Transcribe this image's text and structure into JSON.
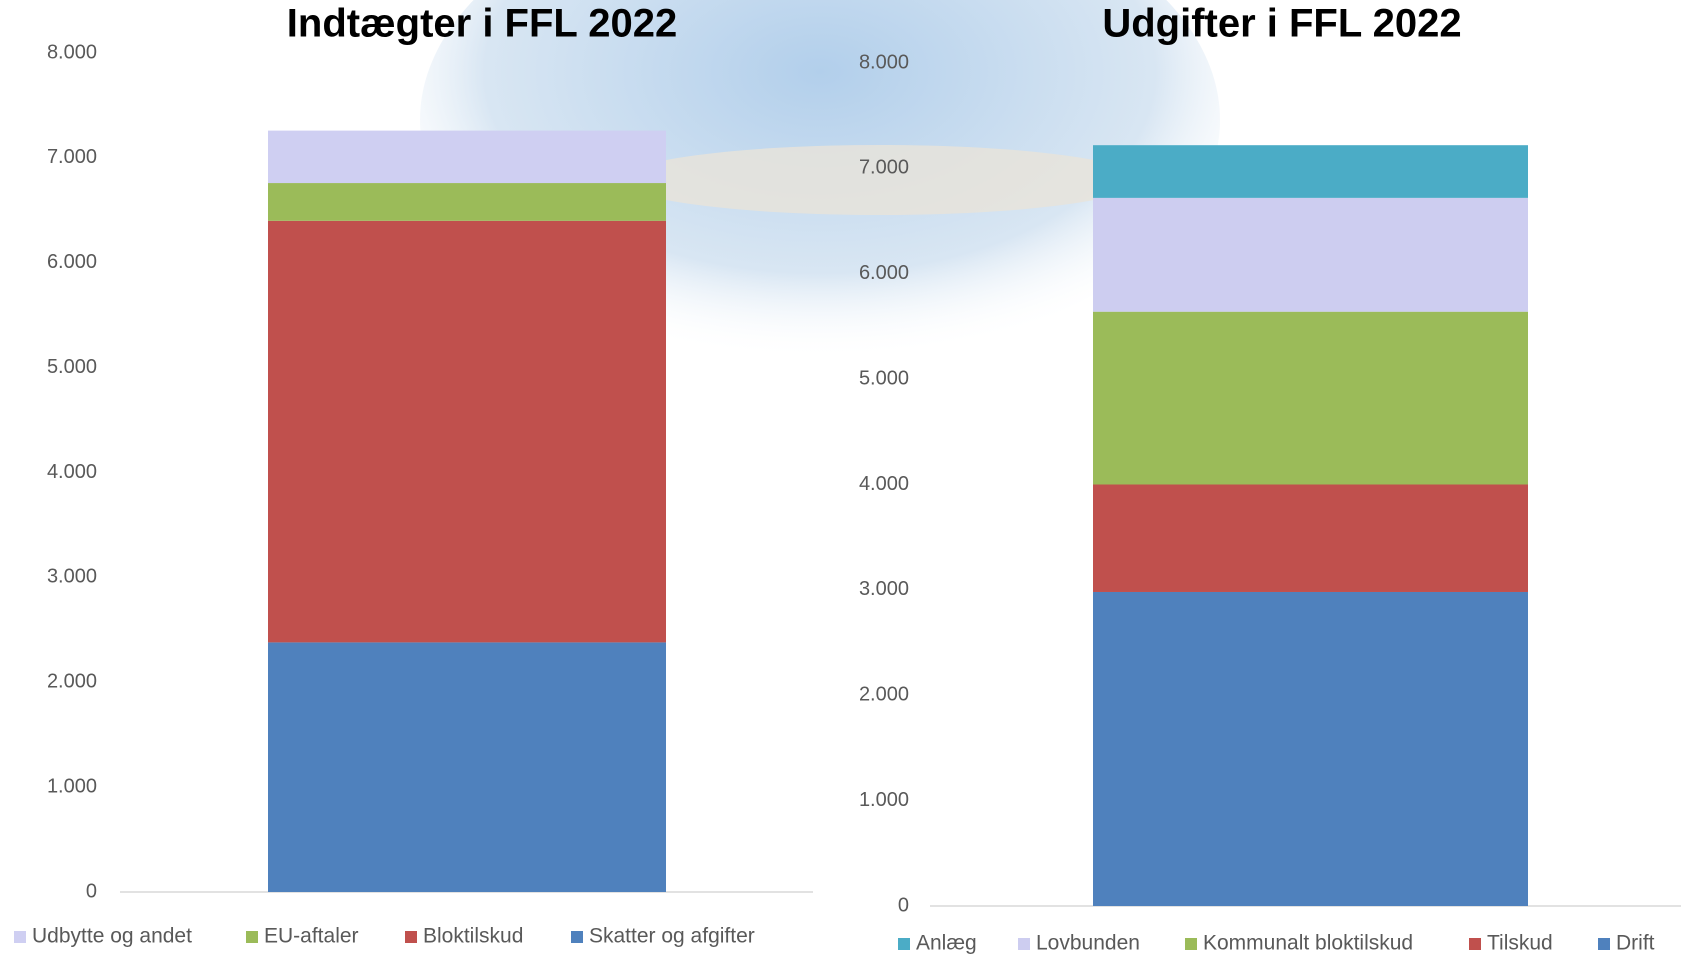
{
  "chart_data": [
    {
      "type": "stacked_bar",
      "title": "Indtægter i FFL 2022",
      "categories": [
        null
      ],
      "series": [
        {
          "name": "Skatter og afgifter",
          "color": "#4f81bd",
          "values": [
            2380
          ]
        },
        {
          "name": "Bloktilskud",
          "color": "#c0504d",
          "values": [
            4020
          ]
        },
        {
          "name": "EU-aftaler",
          "color": "#9bbb59",
          "values": [
            360
          ]
        },
        {
          "name": "Udbytte og andet",
          "color": "#cfcff2",
          "values": [
            500
          ]
        }
      ],
      "ylim": [
        0,
        8000
      ],
      "yticks": [
        0,
        {
          "value": 1000,
          "label": "1.000"
        },
        {
          "value": 2000,
          "label": "2.000"
        },
        {
          "value": 3000,
          "label": "3.000"
        },
        {
          "value": 4000,
          "label": "4.000"
        },
        {
          "value": 5000,
          "label": "5.000"
        },
        {
          "value": 6000,
          "label": "6.000"
        },
        {
          "value": 7000,
          "label": "7.000"
        },
        {
          "value": 8000,
          "label": "8.000"
        }
      ],
      "legend": "bottom"
    },
    {
      "type": "stacked_bar",
      "title": "Udgifter i FFL 2022",
      "categories": [
        null
      ],
      "series": [
        {
          "name": "Drift",
          "color": "#4f81bd",
          "values": [
            2980
          ]
        },
        {
          "name": "Tilskud",
          "color": "#c0504d",
          "values": [
            1020
          ]
        },
        {
          "name": "Kommunalt bloktilskud",
          "color": "#9bbb59",
          "values": [
            1640
          ]
        },
        {
          "name": "Lovbunden",
          "color": "#cdcdf0",
          "values": [
            1080
          ]
        },
        {
          "name": "Anlæg",
          "color": "#4bacc6",
          "values": [
            500
          ]
        }
      ],
      "ylim": [
        0,
        8000
      ],
      "yticks": [
        0,
        {
          "value": 1000,
          "label": "1.000"
        },
        {
          "value": 2000,
          "label": "2.000"
        },
        {
          "value": 3000,
          "label": "3.000"
        },
        {
          "value": 4000,
          "label": "4.000"
        },
        {
          "value": 5000,
          "label": "5.000"
        },
        {
          "value": 6000,
          "label": "6.000"
        },
        {
          "value": 7000,
          "label": "7.000"
        },
        {
          "value": 8000,
          "label": "8.000"
        }
      ],
      "legend": "bottom"
    }
  ]
}
